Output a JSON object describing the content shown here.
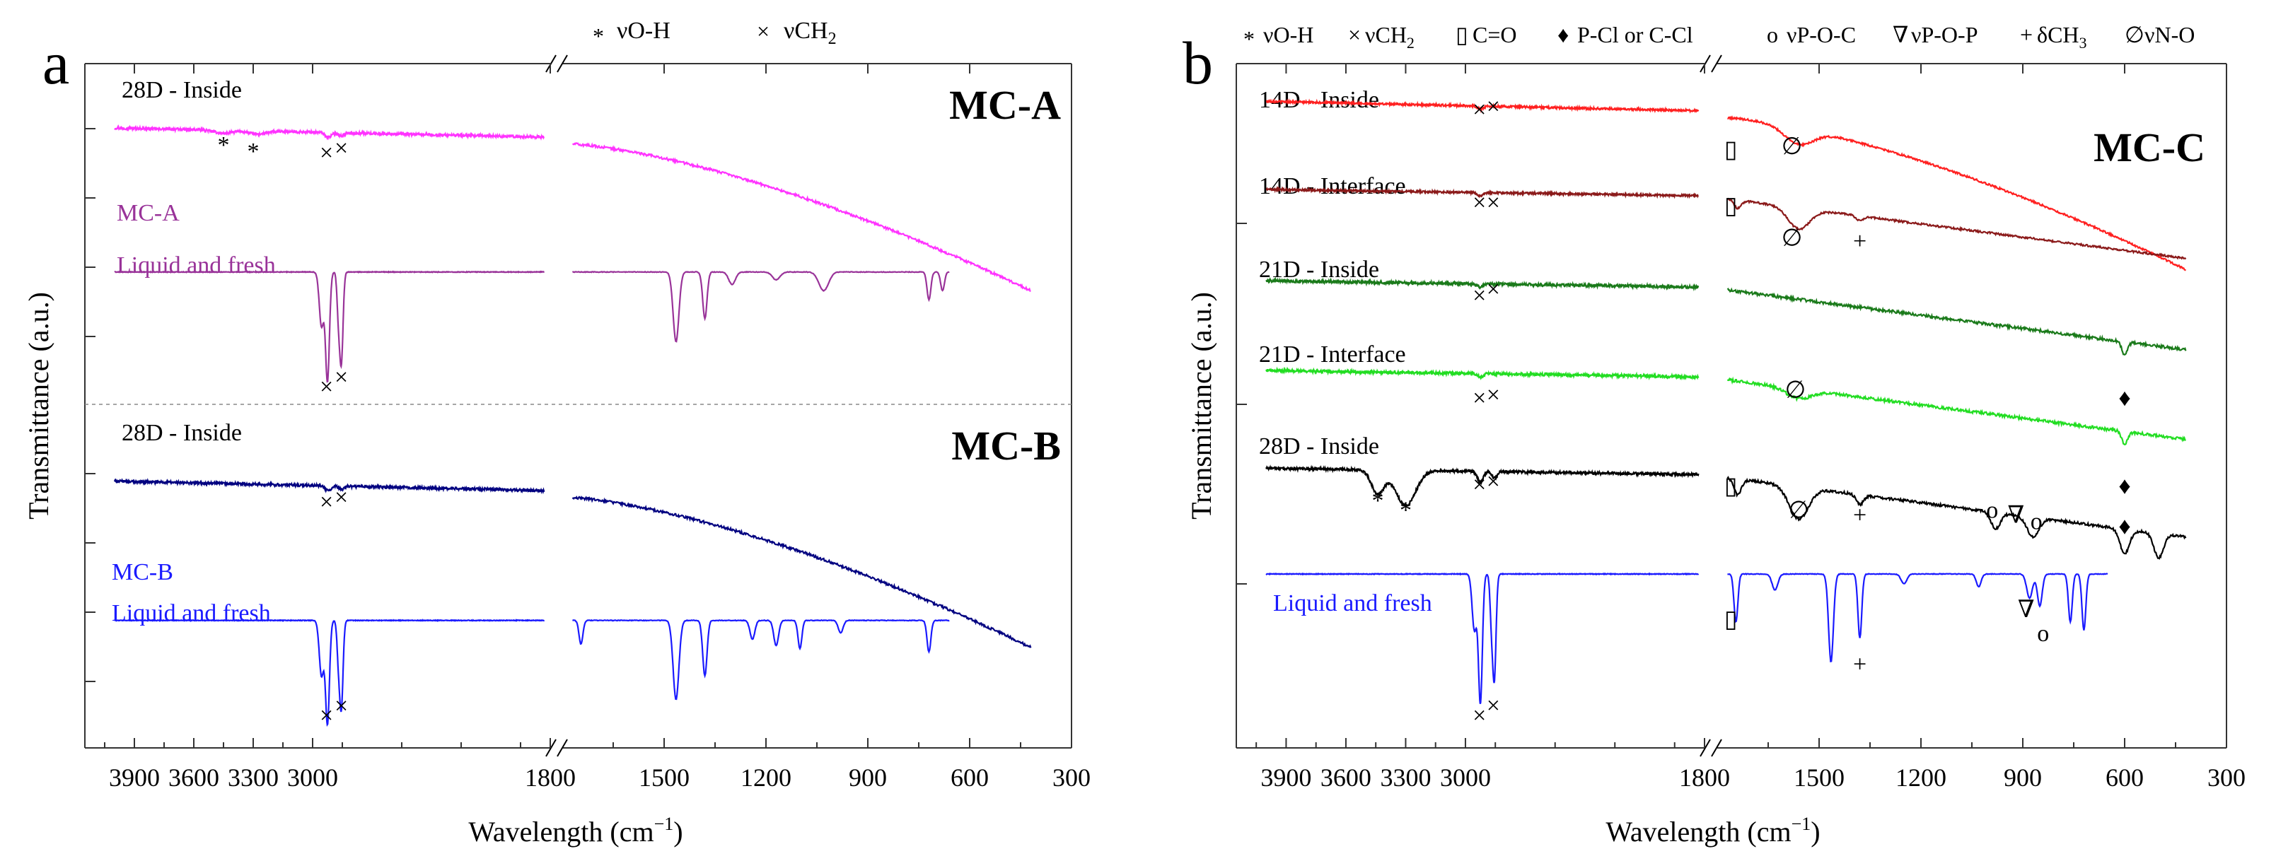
{
  "figure": {
    "xlabel_main": "Wavelength (cm",
    "xlabel_sup": "−1",
    "xlabel_close": ")",
    "ylabel": "Transmittance (a.u.)"
  },
  "chart_data": [
    {
      "type": "line",
      "panel_letter": "a",
      "xlabel": "Wavelength (cm−1)",
      "ylabel": "Transmittance (a.u.)",
      "x_left_range": [
        4150,
        1800
      ],
      "x_right_range": [
        1800,
        300
      ],
      "x_axis_break": "1800",
      "ticks_left": [
        "3900",
        "3600",
        "3300",
        "3000"
      ],
      "ticks_right": [
        "1800",
        "1500",
        "1200",
        "900",
        "600",
        "300"
      ],
      "legend_items": [
        {
          "symbol": "*",
          "label": "νO-H"
        },
        {
          "symbol": "×",
          "label": "νCH",
          "sub": "2"
        }
      ],
      "groups": [
        {
          "title": "MC-A",
          "range": [
            2.45,
            4.55
          ]
        },
        {
          "title": "MC-B",
          "range": [
            -0.05,
            2.05
          ]
        }
      ],
      "series": [
        {
          "name": "28D - Inside",
          "group": "MC-A",
          "color": "#ff33ff",
          "offset": 4.2,
          "label_lines": [
            "28D - Inside"
          ],
          "profile": "rising",
          "noise": 0.008,
          "end_x": 420,
          "peaks": [
            [
              3450,
              0.02,
              60
            ],
            [
              3280,
              0.02,
              60
            ],
            [
              2920,
              0.03,
              22
            ],
            [
              2855,
              0.02,
              18
            ]
          ]
        },
        {
          "name": "MC-A Liquid and fresh",
          "group": "MC-A",
          "color": "#993399",
          "offset": 3.25,
          "label_lines": [
            "MC-A",
            "Liquid and fresh"
          ],
          "profile": "flat",
          "noise": 0.002,
          "end_x": 660,
          "peaks": [
            [
              2955,
              0.35,
              16
            ],
            [
              2925,
              0.7,
              14
            ],
            [
              2870,
              0.25,
              10
            ],
            [
              2855,
              0.58,
              12
            ],
            [
              1465,
              0.45,
              12
            ],
            [
              1380,
              0.3,
              9
            ],
            [
              1300,
              0.08,
              14
            ],
            [
              1170,
              0.05,
              16
            ],
            [
              1030,
              0.12,
              20
            ],
            [
              720,
              0.18,
              8
            ],
            [
              680,
              0.12,
              8
            ]
          ]
        },
        {
          "name": "28D - Inside",
          "group": "MC-B",
          "color": "#000080",
          "offset": 1.62,
          "label_lines": [
            "28D - Inside"
          ],
          "profile": "rising",
          "noise": 0.008,
          "end_x": 420,
          "peaks": [
            [
              2920,
              0.03,
              22
            ],
            [
              2855,
              0.02,
              18
            ]
          ]
        },
        {
          "name": "MC-B Liquid and fresh",
          "group": "MC-B",
          "color": "#1a1aff",
          "offset": 0.72,
          "label_lines": [
            "MC-B",
            "Liquid and fresh"
          ],
          "profile": "flat",
          "noise": 0.002,
          "end_x": 660,
          "peaks": [
            [
              2955,
              0.35,
              16
            ],
            [
              2925,
              0.65,
              14
            ],
            [
              2870,
              0.22,
              10
            ],
            [
              2855,
              0.55,
              12
            ],
            [
              1745,
              0.15,
              8
            ],
            [
              1465,
              0.5,
              12
            ],
            [
              1380,
              0.35,
              9
            ],
            [
              1240,
              0.12,
              10
            ],
            [
              1170,
              0.16,
              10
            ],
            [
              1100,
              0.18,
              8
            ],
            [
              980,
              0.08,
              10
            ],
            [
              720,
              0.2,
              8
            ]
          ]
        }
      ],
      "marker_labels": [
        {
          "symbol": "*",
          "x": 3450,
          "y": 4.02
        },
        {
          "symbol": "*",
          "x": 3300,
          "y": 3.98
        },
        {
          "symbol": "×",
          "x": 2930,
          "y": 3.97
        },
        {
          "symbol": "×",
          "x": 2855,
          "y": 4.0
        },
        {
          "symbol": "×",
          "x": 2930,
          "y": 2.46
        },
        {
          "symbol": "×",
          "x": 2855,
          "y": 2.52
        },
        {
          "symbol": "×",
          "x": 2930,
          "y": 1.42
        },
        {
          "symbol": "×",
          "x": 2855,
          "y": 1.45
        },
        {
          "symbol": "×",
          "x": 2930,
          "y": 0.07
        },
        {
          "symbol": "×",
          "x": 2855,
          "y": 0.13
        }
      ]
    },
    {
      "type": "line",
      "panel_letter": "b",
      "title": "MC-C",
      "xlabel": "Wavelength (cm−1)",
      "ylabel": "Transmittance (a.u.)",
      "x_left_range": [
        4150,
        1800
      ],
      "x_right_range": [
        1800,
        300
      ],
      "x_axis_break": "1800",
      "ticks_left": [
        "3900",
        "3600",
        "3300",
        "3000"
      ],
      "ticks_right": [
        "1800",
        "1500",
        "1200",
        "900",
        "600",
        "300"
      ],
      "y_range": [
        -0.1,
        4.1
      ],
      "legend_items": [
        {
          "symbol": "*",
          "label": "νO-H"
        },
        {
          "symbol": "×",
          "label": "νCH",
          "sub": "2"
        },
        {
          "symbol": "▯",
          "label": "C=O"
        },
        {
          "symbol": "♦",
          "label": "P-Cl or C-Cl"
        },
        {
          "symbol": "o",
          "label": "νP-O-C"
        },
        {
          "symbol": "∇",
          "label": "νP-O-P"
        },
        {
          "symbol": "+",
          "label": "δCH",
          "sub": "3"
        },
        {
          "symbol": "∅",
          "label": "νN-O"
        }
      ],
      "series": [
        {
          "name": "14D - Inside",
          "color": "#ff2020",
          "offset": 3.92,
          "label_lines": [
            "14D - Inside"
          ],
          "profile": "rising",
          "noise": 0.006,
          "end_x": 420,
          "peaks": [
            [
              2925,
              0.02,
              20
            ],
            [
              1560,
              0.1,
              60
            ]
          ]
        },
        {
          "name": "14D - Interface",
          "color": "#8b1a1a",
          "offset": 3.36,
          "label_lines": [
            "14D - Interface"
          ],
          "profile": "mild",
          "noise": 0.006,
          "end_x": 420,
          "peaks": [
            [
              2925,
              0.02,
              20
            ],
            [
              1740,
              0.05,
              15
            ],
            [
              1560,
              0.13,
              45
            ],
            [
              1380,
              0.03,
              15
            ]
          ]
        },
        {
          "name": "21D - Inside",
          "color": "#1a7a1a",
          "offset": 2.79,
          "label_lines": [
            "21D - Inside"
          ],
          "profile": "mild",
          "noise": 0.009,
          "end_x": 420,
          "peaks": [
            [
              2925,
              0.02,
              20
            ],
            [
              600,
              0.08,
              12
            ]
          ]
        },
        {
          "name": "21D - Interface",
          "color": "#22dd22",
          "offset": 2.23,
          "label_lines": [
            "21D - Interface"
          ],
          "profile": "mild",
          "noise": 0.009,
          "end_x": 420,
          "peaks": [
            [
              2925,
              0.02,
              20
            ],
            [
              1560,
              0.06,
              50
            ],
            [
              600,
              0.08,
              12
            ]
          ]
        },
        {
          "name": "28D - Inside",
          "color": "#000000",
          "offset": 1.62,
          "label_lines": [
            "28D - Inside"
          ],
          "profile": "mild",
          "noise": 0.008,
          "end_x": 420,
          "peaks": [
            [
              3440,
              0.15,
              45
            ],
            [
              3300,
              0.22,
              70
            ],
            [
              2925,
              0.07,
              20
            ],
            [
              2855,
              0.04,
              18
            ],
            [
              1740,
              0.1,
              15
            ],
            [
              1560,
              0.2,
              40
            ],
            [
              1380,
              0.06,
              15
            ],
            [
              980,
              0.1,
              20
            ],
            [
              870,
              0.12,
              25
            ],
            [
              600,
              0.15,
              20
            ],
            [
              500,
              0.15,
              20
            ]
          ]
        },
        {
          "name": "Liquid and fresh",
          "color": "#1a1aff",
          "offset": 0.95,
          "label_lines": [
            "Liquid and fresh"
          ],
          "profile": "flat",
          "noise": 0.002,
          "end_x": 650,
          "peaks": [
            [
              2955,
              0.35,
              16
            ],
            [
              2925,
              0.8,
              14
            ],
            [
              2870,
              0.25,
              10
            ],
            [
              2855,
              0.65,
              12
            ],
            [
              1745,
              0.3,
              8
            ],
            [
              1630,
              0.1,
              12
            ],
            [
              1465,
              0.55,
              10
            ],
            [
              1380,
              0.4,
              8
            ],
            [
              1250,
              0.06,
              12
            ],
            [
              1030,
              0.08,
              10
            ],
            [
              880,
              0.15,
              12
            ],
            [
              850,
              0.2,
              10
            ],
            [
              760,
              0.3,
              8
            ],
            [
              720,
              0.35,
              8
            ]
          ]
        }
      ],
      "marker_labels": [
        {
          "symbol": "×",
          "x": 2930,
          "y": 3.8
        },
        {
          "symbol": "×",
          "x": 2860,
          "y": 3.82
        },
        {
          "symbol": "▯",
          "x": 1760,
          "y": 3.55
        },
        {
          "symbol": "∅",
          "x": 1580,
          "y": 3.57
        },
        {
          "symbol": "×",
          "x": 2930,
          "y": 3.22
        },
        {
          "symbol": "×",
          "x": 2860,
          "y": 3.22
        },
        {
          "symbol": "▯",
          "x": 1760,
          "y": 3.2
        },
        {
          "symbol": "∅",
          "x": 1580,
          "y": 3.0
        },
        {
          "symbol": "+",
          "x": 1380,
          "y": 2.98
        },
        {
          "symbol": "×",
          "x": 2930,
          "y": 2.64
        },
        {
          "symbol": "×",
          "x": 2860,
          "y": 2.68
        },
        {
          "symbol": "×",
          "x": 2930,
          "y": 2.0
        },
        {
          "symbol": "×",
          "x": 2860,
          "y": 2.02
        },
        {
          "symbol": "∅",
          "x": 1570,
          "y": 2.05
        },
        {
          "symbol": "♦",
          "x": 600,
          "y": 2.0
        },
        {
          "symbol": "*",
          "x": 3440,
          "y": 1.36
        },
        {
          "symbol": "*",
          "x": 3300,
          "y": 1.3
        },
        {
          "symbol": "×",
          "x": 2930,
          "y": 1.46
        },
        {
          "symbol": "×",
          "x": 2860,
          "y": 1.48
        },
        {
          "symbol": "▯",
          "x": 1760,
          "y": 1.45
        },
        {
          "symbol": "∅",
          "x": 1560,
          "y": 1.3
        },
        {
          "symbol": "+",
          "x": 1380,
          "y": 1.27
        },
        {
          "symbol": "o",
          "x": 990,
          "y": 1.3
        },
        {
          "symbol": "∇",
          "x": 920,
          "y": 1.27
        },
        {
          "symbol": "o",
          "x": 860,
          "y": 1.23
        },
        {
          "symbol": "♦",
          "x": 600,
          "y": 1.45
        },
        {
          "symbol": "♦",
          "x": 600,
          "y": 1.2
        },
        {
          "symbol": "▯",
          "x": 1760,
          "y": 0.62
        },
        {
          "symbol": "+",
          "x": 1380,
          "y": 0.34
        },
        {
          "symbol": "∇",
          "x": 890,
          "y": 0.68
        },
        {
          "symbol": "o",
          "x": 840,
          "y": 0.53
        },
        {
          "symbol": "×",
          "x": 2930,
          "y": 0.02
        },
        {
          "symbol": "×",
          "x": 2860,
          "y": 0.08
        }
      ]
    }
  ]
}
